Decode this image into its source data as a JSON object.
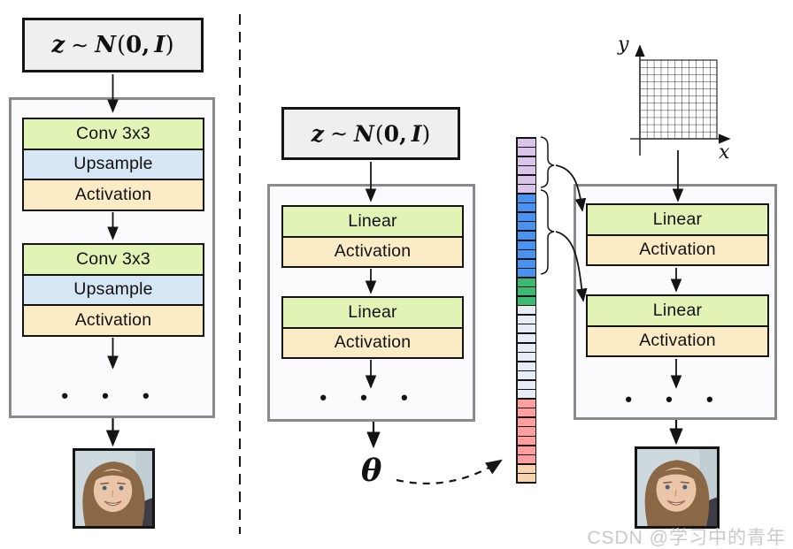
{
  "palette": {
    "block_green": "#e1f3b5",
    "block_blue": "#d6e6f5",
    "block_orange": "#fcecc6",
    "zbox_bg": "#efefef",
    "container_bg": "#fbfafd",
    "container_border": "#8a8a8a",
    "block_border": "#141414",
    "watermark_color": "#c9c9c9"
  },
  "math": {
    "z": "z",
    "sim": "∼",
    "dist": "N",
    "open": "(",
    "zero": "0",
    "comma": ",",
    "identity": "I",
    "close": ")",
    "theta": "θ",
    "x_label": "x",
    "y_label": "y"
  },
  "blocks": {
    "conv": "Conv 3x3",
    "upsample": "Upsample",
    "activation": "Activation",
    "linear": "Linear",
    "dots": "• • •"
  },
  "weight_vector": {
    "segments": [
      {
        "name": "purple",
        "hex": "#d8c5e9",
        "count": 6
      },
      {
        "name": "blue",
        "hex": "#4a92f0",
        "count": 9
      },
      {
        "name": "green",
        "hex": "#3cba74",
        "count": 3
      },
      {
        "name": "pale-blue",
        "hex": "#e7edf7",
        "count": 10
      },
      {
        "name": "salmon",
        "hex": "#ff9e9e",
        "count": 7
      },
      {
        "name": "peach",
        "hex": "#f7d4ab",
        "count": 2
      }
    ]
  },
  "watermark": "CSDN @学习中的青年"
}
